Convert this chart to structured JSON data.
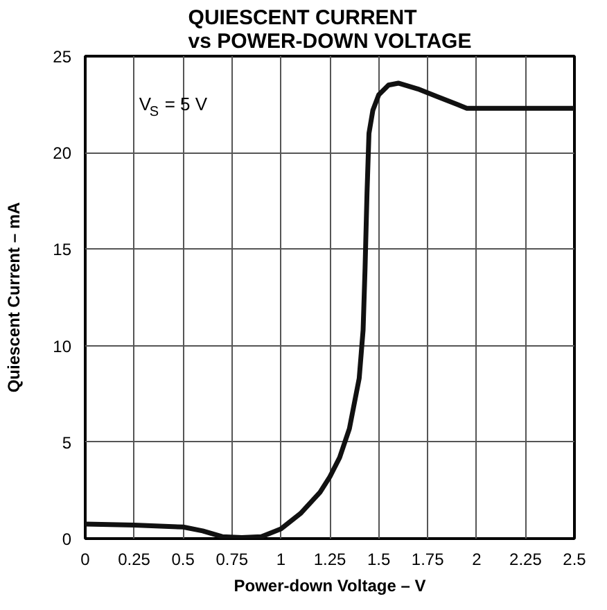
{
  "chart_data": {
    "type": "line",
    "title": "QUIESCENT CURRENT\nvs POWER-DOWN VOLTAGE",
    "xlabel": "Power-down Voltage – V",
    "ylabel": "Quiescent Current – mA",
    "annotations": [
      "V$_{S}$ = 5 V"
    ],
    "x": [
      0,
      0.25,
      0.5,
      0.6,
      0.7,
      0.8,
      0.9,
      1.0,
      1.1,
      1.2,
      1.25,
      1.3,
      1.35,
      1.4,
      1.42,
      1.43,
      1.44,
      1.45,
      1.47,
      1.5,
      1.55,
      1.6,
      1.7,
      1.8,
      1.9,
      1.95,
      2.0,
      2.5
    ],
    "series": [
      {
        "color": "#111111",
        "values": [
          0.75,
          0.7,
          0.6,
          0.4,
          0.1,
          0.05,
          0.1,
          0.5,
          1.3,
          2.4,
          3.2,
          4.2,
          5.7,
          8.3,
          10.8,
          14,
          17.9,
          21,
          22.2,
          23,
          23.5,
          23.6,
          23.3,
          22.9,
          22.5,
          22.3,
          22.3,
          22.3
        ]
      }
    ],
    "xlim": [
      0,
      2.5
    ],
    "ylim": [
      0,
      25
    ],
    "xticks": [
      0,
      0.25,
      0.5,
      0.75,
      1,
      1.25,
      1.5,
      1.75,
      2,
      2.25,
      2.5
    ],
    "yticks": [
      0,
      5,
      10,
      15,
      20,
      25
    ],
    "grid": true,
    "marker": "none",
    "line_style": "solid"
  }
}
